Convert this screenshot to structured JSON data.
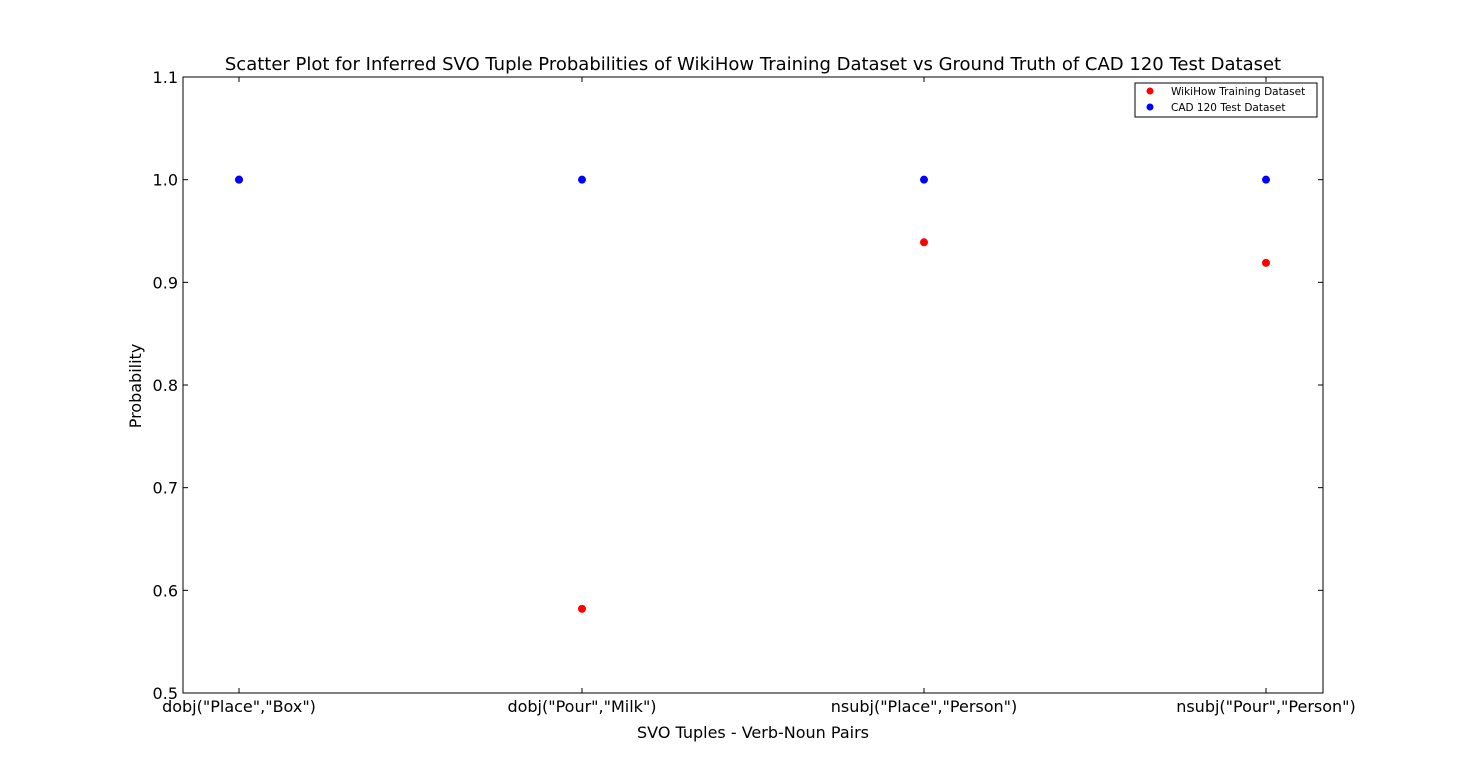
{
  "chart_data": {
    "type": "scatter",
    "title": "Scatter Plot for Inferred SVO Tuple Probabilities of WikiHow Training Dataset vs Ground Truth of CAD 120 Test Dataset",
    "xlabel": "SVO Tuples - Verb-Noun Pairs",
    "ylabel": "Probability",
    "categories": [
      "dobj(\"Place\",\"Box\")",
      "dobj(\"Pour\",\"Milk\")",
      "nsubj(\"Place\",\"Person\")",
      "nsubj(\"Pour\",\"Person\")"
    ],
    "ylim": [
      0.5,
      1.1
    ],
    "yticks": [
      "0.5",
      "0.6",
      "0.7",
      "0.8",
      "0.9",
      "1.0",
      "1.1"
    ],
    "grid": false,
    "legend_position": "top-right",
    "series": [
      {
        "name": "WikiHow Training Dataset",
        "color": "#ff0000",
        "values": [
          1.0,
          0.582,
          0.939,
          0.919
        ]
      },
      {
        "name": "CAD 120 Test Dataset",
        "color": "#0000ff",
        "values": [
          1.0,
          1.0,
          1.0,
          1.0
        ]
      }
    ]
  }
}
